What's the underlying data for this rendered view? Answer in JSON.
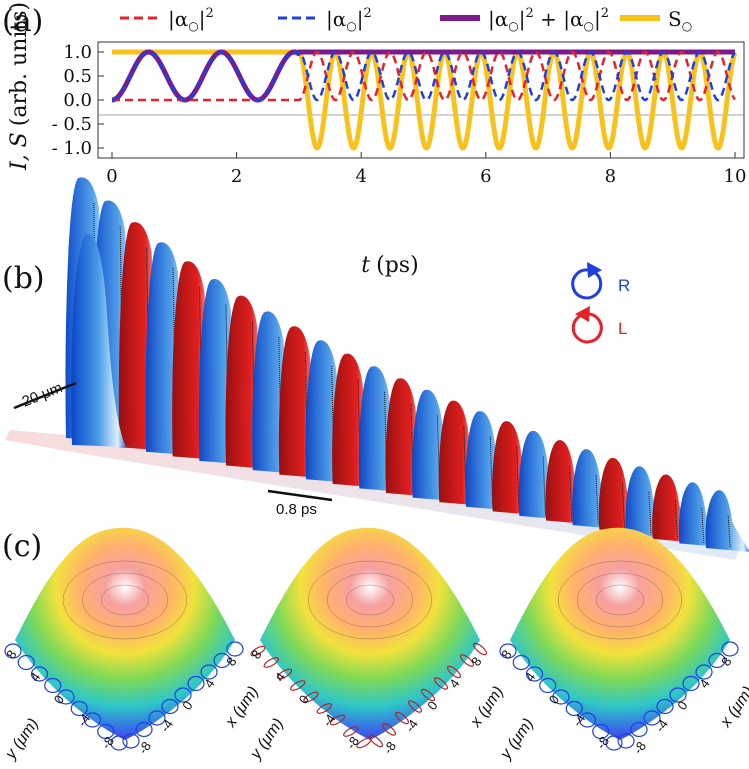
{
  "panels": {
    "a": "(a)",
    "b": "(b)",
    "c": "(c)"
  },
  "chart_data": {
    "type": "line",
    "title": "",
    "xlabel_var": "t",
    "xlabel_unit": "(ps)",
    "ylabel_var": "I, S",
    "ylabel_unit": "(arb. units)",
    "xlim": [
      0,
      10
    ],
    "ylim": [
      -1.05,
      1.05
    ],
    "xticks": [
      "0",
      "2",
      "4",
      "6",
      "8",
      "10"
    ],
    "xtick_values": [
      0,
      2,
      4,
      6,
      8,
      10
    ],
    "yticks": [
      "1.0",
      "0.5",
      "0.0",
      "- 0.5",
      "- 1.0"
    ],
    "ytick_values": [
      1.0,
      0.5,
      0.0,
      -0.5,
      -1.0
    ],
    "switch_time_ps": 3.0,
    "period_before_ps": 1.17,
    "period_after_ps": 0.585,
    "series": [
      {
        "name": "|α↻|²",
        "label": "|α",
        "sup": "2",
        "style": "dashed",
        "color": "#e8202a",
        "description": "0 for t<3 ps; oscillates between 0 and 1 for t>3 ps"
      },
      {
        "name": "|α↺|²",
        "label": "|α",
        "sup": "2",
        "style": "dashed",
        "color": "#1f3fe0",
        "description": "oscillates between 0 and 1 (period ≈1.17 ps) for t<3; between 0 and 1 (period ≈0.585 ps) for t>3"
      },
      {
        "name": "|α↻|² + |α↺|²",
        "label": "|α",
        "sup": "2",
        "style": "solid",
        "color": "#7a1a8c",
        "description": "tracks |α↺|² before 3 ps, constant 1.0 after"
      },
      {
        "name": "S↻",
        "label": "S",
        "style": "solid",
        "color": "#f7c21b",
        "description": "1.0 for t<3 ps; oscillates between -1 and 1 for t>3"
      }
    ]
  },
  "panel_b": {
    "scale_space": "20 μm",
    "scale_time": "0.8 ps",
    "legend_R": "R",
    "legend_L": "L",
    "colors": {
      "R": "#1f3fe0",
      "L": "#e8202a"
    }
  },
  "panel_c": {
    "plots": [
      {
        "y_axis": "y (μm)",
        "x_axis": "x (μm)",
        "ticks": [
          "8",
          "4",
          "0",
          "-4",
          "-8"
        ],
        "ellipse_color": "#1f3fe0"
      },
      {
        "y_axis": "y (μm)",
        "x_axis": "x (μm)",
        "ticks": [
          "8",
          "4",
          "0",
          "-4",
          "-8"
        ],
        "ellipse_color": "#b0242a"
      },
      {
        "y_axis": "y (μm)",
        "x_axis": "x (μm)",
        "ticks": [
          "8",
          "4",
          "0",
          "-4",
          "-8"
        ],
        "ellipse_color": "#1f3fe0"
      }
    ]
  }
}
